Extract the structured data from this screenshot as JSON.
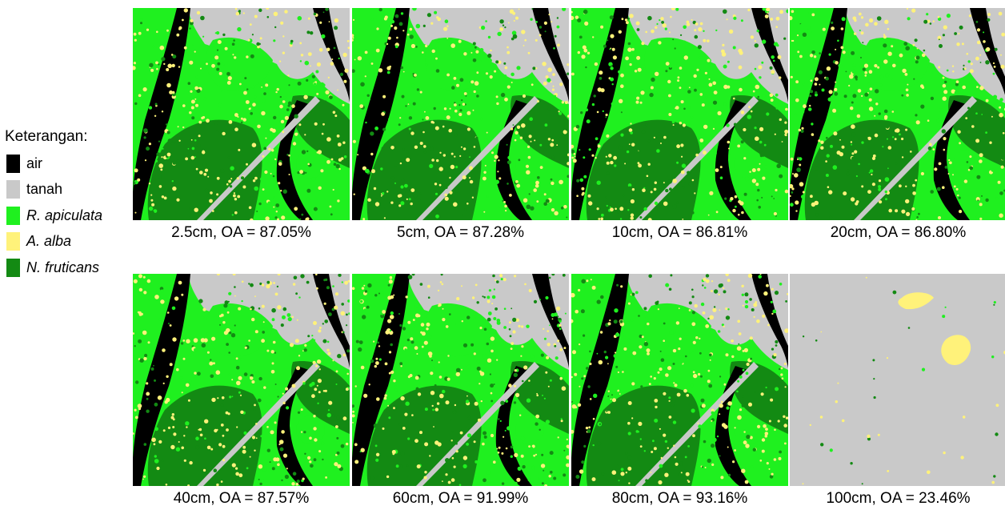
{
  "legend": {
    "title": "Keterangan:",
    "items": [
      {
        "key": "air",
        "label": "air",
        "color": "#000000",
        "italic": false
      },
      {
        "key": "tanah",
        "label": "tanah",
        "color": "#c9c9c9",
        "italic": false
      },
      {
        "key": "r_apiculata",
        "label": "R. apiculata",
        "color": "#1ff01f",
        "italic": true
      },
      {
        "key": "a_alba",
        "label": "A. alba",
        "color": "#fff27a",
        "italic": true
      },
      {
        "key": "n_fruticans",
        "label": "N. fruticans",
        "color": "#138a13",
        "italic": true
      }
    ]
  },
  "panels": [
    {
      "caption": "2.5cm, OA = 87.05%",
      "variant": "classified"
    },
    {
      "caption": "5cm, OA = 87.28%",
      "variant": "classified"
    },
    {
      "caption": "10cm, OA = 86.81%",
      "variant": "classified"
    },
    {
      "caption": "20cm, OA = 86.80%",
      "variant": "classified"
    },
    {
      "caption": "40cm, OA = 87.57%",
      "variant": "classified"
    },
    {
      "caption": "60cm, OA = 91.99%",
      "variant": "classified"
    },
    {
      "caption": "80cm, OA = 93.16%",
      "variant": "classified"
    },
    {
      "caption": "100cm, OA = 23.46%",
      "variant": "mostly-tanah"
    }
  ]
}
